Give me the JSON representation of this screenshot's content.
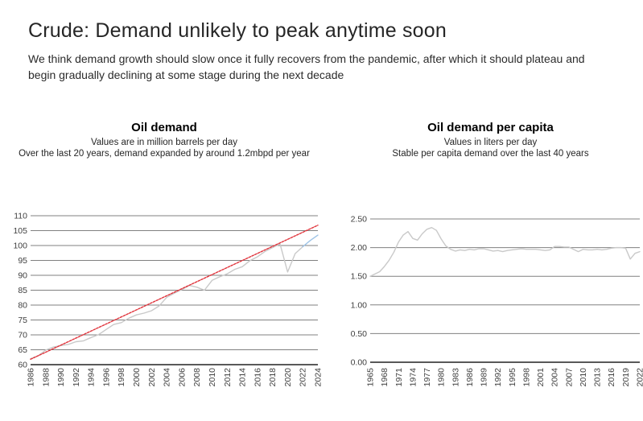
{
  "page": {
    "title": "Crude: Demand unlikely to peak anytime soon",
    "subtitle": "We think demand growth should slow once it fully recovers from the pandemic, after which it should plateau and begin gradually declining at some stage during the next decade"
  },
  "colors": {
    "historical_line": "#c9c9c9",
    "forecast_line": "#9dc3e6",
    "trend_line": "#e0343c",
    "gridline": "#808080",
    "axis": "#595959",
    "text": "#262626"
  },
  "chart_data": [
    {
      "type": "line",
      "title": "Oil demand",
      "subtitle_lines": [
        "Values are in million barrels per day",
        "Over the last 20 years, demand expanded by around 1.2mbpd per year"
      ],
      "xlabel": "",
      "ylabel": "million barrels per day",
      "x_start": 1986,
      "x_end": 2024,
      "x_ticks": [
        1986,
        1988,
        1990,
        1992,
        1994,
        1996,
        1998,
        2000,
        2002,
        2004,
        2006,
        2008,
        2010,
        2012,
        2014,
        2016,
        2018,
        2020,
        2022,
        2024
      ],
      "ylim": [
        60,
        110
      ],
      "y_step": 5,
      "y_decimals": 0,
      "grid": true,
      "legend": "none",
      "series": [
        {
          "name": "historical demand",
          "color": "#c9c9c9",
          "dashed": false,
          "x_first": 1986,
          "values": [
            62.0,
            63.0,
            64.9,
            65.9,
            66.4,
            66.8,
            67.7,
            68.0,
            69.1,
            70.1,
            71.8,
            73.5,
            74.1,
            75.6,
            76.7,
            77.3,
            78.1,
            79.7,
            82.6,
            84.0,
            85.2,
            86.6,
            86.0,
            85.0,
            88.3,
            89.5,
            90.5,
            92.0,
            92.9,
            94.9,
            96.2,
            98.0,
            99.3,
            100.5,
            91.1,
            97.3,
            99.6
          ]
        },
        {
          "name": "forecast",
          "color": "#9dc3e6",
          "dashed": false,
          "x_first": 2022,
          "values": [
            99.6,
            101.7,
            103.5
          ]
        },
        {
          "name": "trend approx +1.2mbpd per year",
          "color": "#e0343c",
          "dashed": true,
          "x": [
            1986,
            2024
          ],
          "values": [
            61.8,
            106.8
          ]
        }
      ]
    },
    {
      "type": "line",
      "title": "Oil demand per capita",
      "subtitle_lines": [
        "Values in liters per day",
        "Stable per capita demand over the last 40 years"
      ],
      "xlabel": "",
      "ylabel": "liters per day",
      "x_start": 1965,
      "x_end": 2022,
      "x_ticks": [
        1965,
        1968,
        1971,
        1974,
        1977,
        1980,
        1983,
        1986,
        1989,
        1992,
        1995,
        1998,
        2001,
        2004,
        2007,
        2010,
        2013,
        2016,
        2019,
        2022
      ],
      "ylim": [
        0,
        2.5
      ],
      "y_step": 0.5,
      "y_decimals": 2,
      "grid": true,
      "legend": "none",
      "series": [
        {
          "name": "per capita demand",
          "color": "#c9c9c9",
          "dashed": false,
          "x_first": 1965,
          "values": [
            1.5,
            1.54,
            1.58,
            1.67,
            1.78,
            1.92,
            2.1,
            2.22,
            2.28,
            2.16,
            2.13,
            2.24,
            2.32,
            2.35,
            2.3,
            2.15,
            2.03,
            1.97,
            1.94,
            1.96,
            1.95,
            1.97,
            1.96,
            1.98,
            1.98,
            1.96,
            1.94,
            1.95,
            1.93,
            1.95,
            1.96,
            1.97,
            1.98,
            1.97,
            1.97,
            1.97,
            1.96,
            1.95,
            1.96,
            2.02,
            2.02,
            2.01,
            2.01,
            1.97,
            1.93,
            1.97,
            1.96,
            1.96,
            1.97,
            1.96,
            1.97,
            1.99,
            2.0,
            2.0,
            1.99,
            1.8,
            1.9,
            1.93
          ]
        }
      ]
    }
  ]
}
